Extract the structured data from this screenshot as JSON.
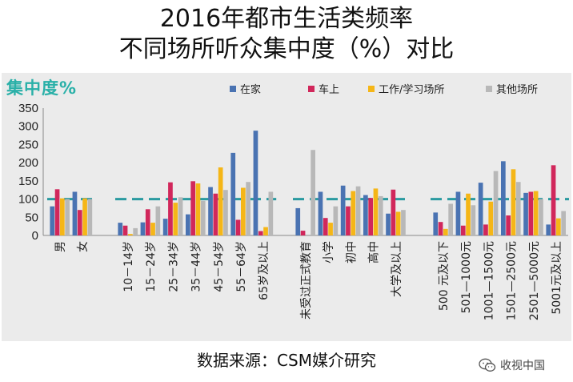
{
  "title_line1": "2016年都市生活类频率",
  "title_line2": "不同场所听众集中度（%）对比",
  "source": "数据来源：CSM媒介研究",
  "brand": "收视中国",
  "brand_icon": "wechat-icon",
  "chart_data": {
    "type": "bar",
    "ylabel": "集中度%",
    "ylim": [
      0,
      350
    ],
    "yticks": [
      0,
      50,
      100,
      150,
      200,
      250,
      300,
      350
    ],
    "reference_line": 100,
    "legend_position": "top",
    "series": [
      {
        "name": "在家",
        "color": "#4a73b2"
      },
      {
        "name": "车上",
        "color": "#d1275b"
      },
      {
        "name": "工作/学习场所",
        "color": "#f5b617"
      },
      {
        "name": "其他场所",
        "color": "#b8b8b8"
      }
    ],
    "groups": [
      {
        "categories": [
          "男",
          "女"
        ],
        "values": [
          [
            80,
            127,
            102,
            100
          ],
          [
            120,
            70,
            102,
            100
          ]
        ]
      },
      {
        "categories": [
          "10－14岁",
          "15－24岁",
          "25－34岁",
          "35－44岁",
          "45－54岁",
          "55－64岁",
          "65岁及以上"
        ],
        "values": [
          [
            35,
            27,
            4,
            20
          ],
          [
            36,
            72,
            35,
            80
          ],
          [
            46,
            146,
            90,
            105
          ],
          [
            58,
            149,
            143,
            95
          ],
          [
            133,
            115,
            187,
            125
          ],
          [
            227,
            43,
            131,
            147
          ],
          [
            288,
            12,
            23,
            120
          ]
        ]
      },
      {
        "categories": [
          "未受过正式教育",
          "小学",
          "初中",
          "高中",
          "大学及以上"
        ],
        "values": [
          [
            75,
            13,
            0,
            235
          ],
          [
            120,
            48,
            35,
            80
          ],
          [
            137,
            80,
            122,
            135
          ],
          [
            111,
            103,
            129,
            108
          ],
          [
            60,
            126,
            65,
            70
          ]
        ]
      },
      {
        "categories": [
          "500 元及以下",
          "501—1000元",
          "1001—1500元",
          "1501—2500元",
          "2501—5000元",
          "5001元及以上"
        ],
        "values": [
          [
            63,
            37,
            18,
            87
          ],
          [
            120,
            27,
            115,
            83
          ],
          [
            145,
            30,
            93,
            177
          ],
          [
            204,
            55,
            182,
            147
          ],
          [
            117,
            120,
            122,
            100
          ],
          [
            30,
            193,
            47,
            67
          ]
        ]
      }
    ]
  }
}
